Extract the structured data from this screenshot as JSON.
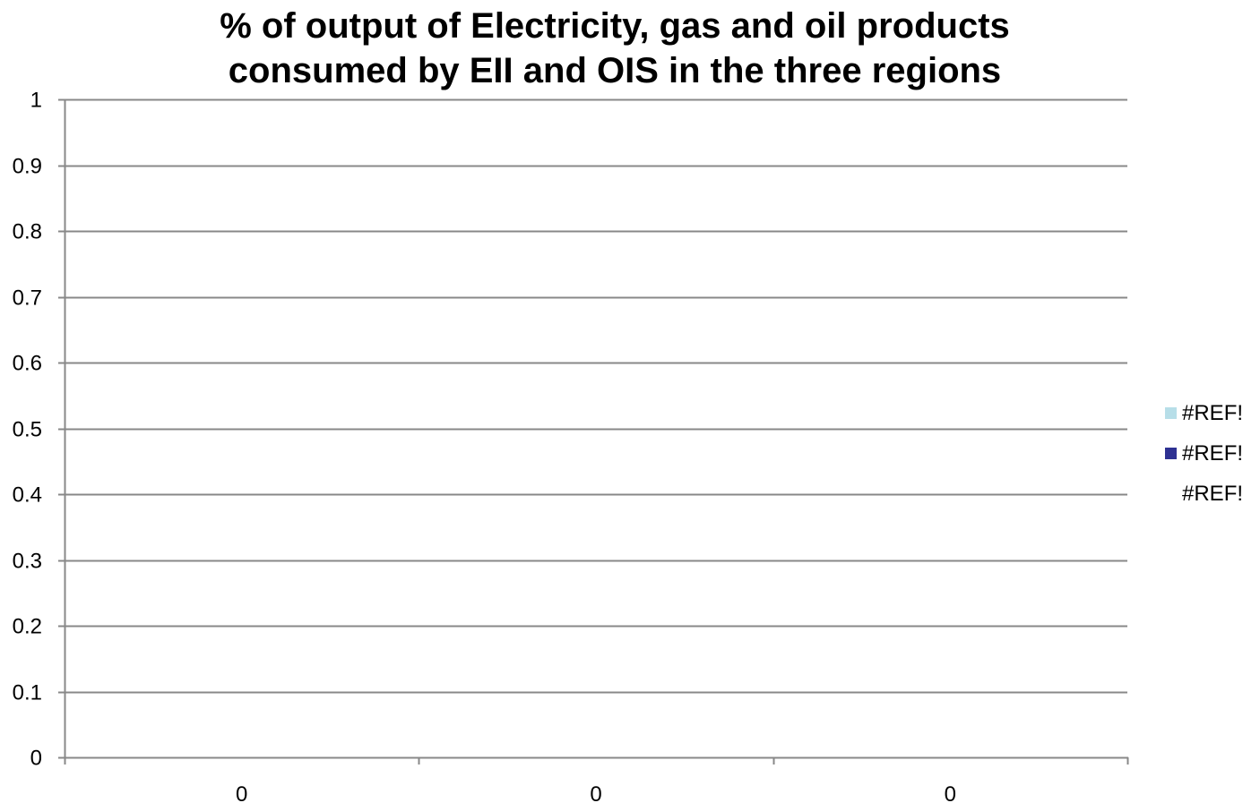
{
  "chart_data": {
    "type": "bar",
    "title": [
      "% of output of Electricity, gas and oil products",
      "consumed by EII and OIS in the three regions"
    ],
    "categories": [
      "0",
      "0",
      "0"
    ],
    "series": [
      {
        "name": "#REF!",
        "color": "#b7dee8",
        "values": [
          0,
          0,
          0
        ]
      },
      {
        "name": "#REF!",
        "color": "#2e3192",
        "values": [
          0,
          0,
          0
        ]
      },
      {
        "name": "#REF!",
        "color": "#ffffff",
        "values": [
          0,
          0,
          0
        ]
      }
    ],
    "ylim": [
      0,
      1
    ],
    "yticks": [
      "0",
      "0.1",
      "0.2",
      "0.3",
      "0.4",
      "0.5",
      "0.6",
      "0.7",
      "0.8",
      "0.9",
      "1"
    ],
    "grid": true,
    "legend_position": "right",
    "colors": {
      "gridline": "#888888",
      "axis": "#888888",
      "text": "#000000"
    }
  }
}
